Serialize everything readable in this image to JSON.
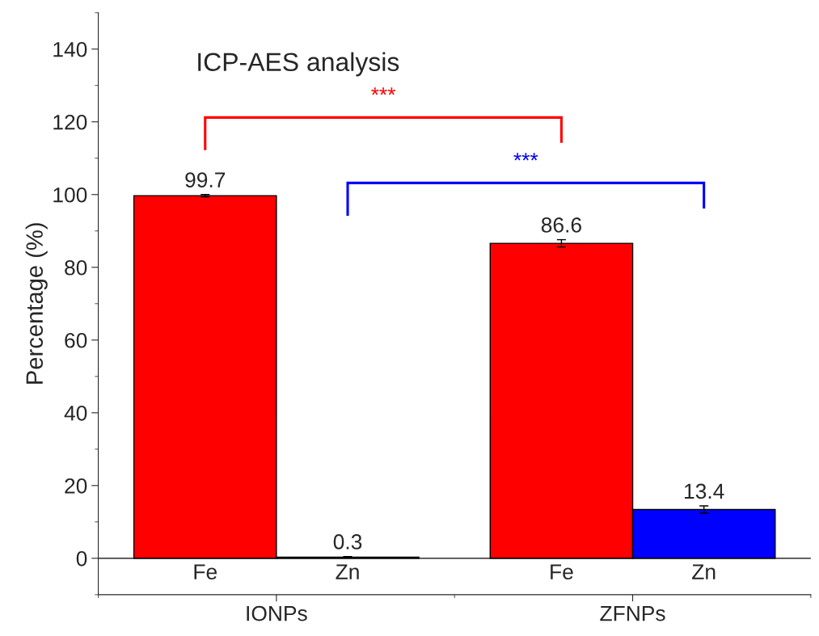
{
  "chart_data": {
    "type": "bar",
    "title": "ICP-AES analysis",
    "ylabel": "Percentage (%)",
    "categories": [
      "IONPs",
      "ZFNPs"
    ],
    "series": [
      {
        "name": "Fe",
        "color": "#ff0000",
        "values": [
          99.7,
          86.6
        ],
        "errors": [
          0.3,
          1.0
        ]
      },
      {
        "name": "Zn",
        "color": "#0000ff",
        "values": [
          0.3,
          13.4
        ],
        "errors": [
          0.2,
          1.0
        ]
      }
    ],
    "ylim": [
      -10,
      150
    ],
    "yticks": [
      0,
      20,
      40,
      60,
      80,
      100,
      120,
      140
    ],
    "ref_lines": [
      {
        "axis": "y",
        "value": 0,
        "color": "#000000"
      }
    ],
    "data_labels": true,
    "grid": false,
    "legend": false,
    "annotations": [
      "***",
      "***"
    ]
  }
}
